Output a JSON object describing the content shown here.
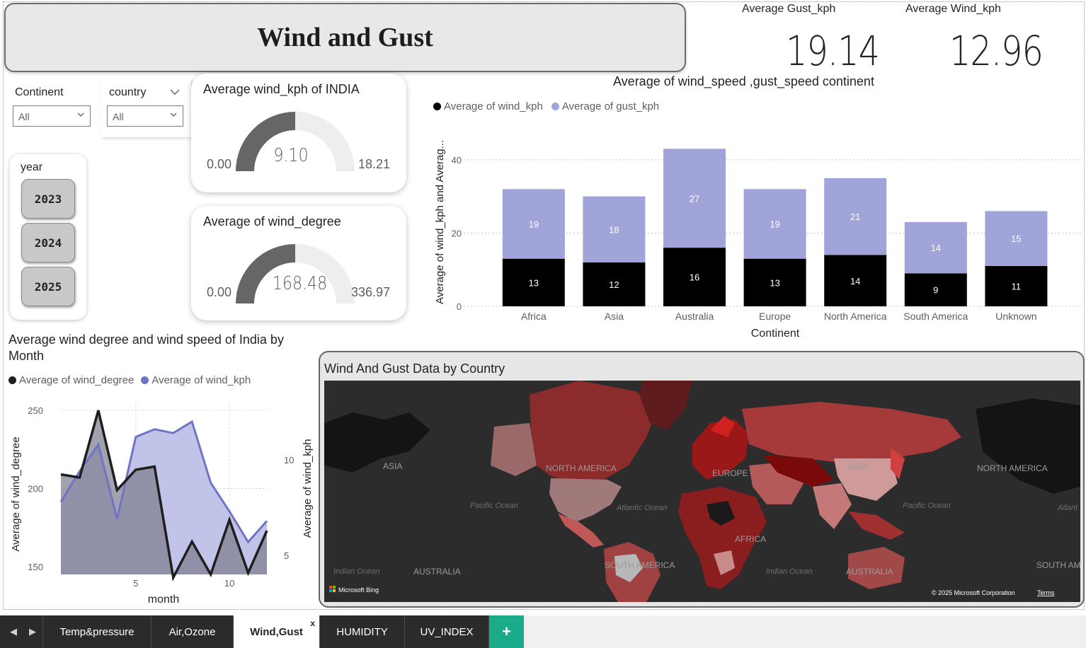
{
  "report": {
    "title": "Wind and Gust"
  },
  "kpis": [
    {
      "label": "Average Gust_kph",
      "value": "19.14"
    },
    {
      "label": "Average Wind_kph",
      "value": "12.96"
    }
  ],
  "slicers": {
    "continent": {
      "label": "Continent",
      "value": "All"
    },
    "country": {
      "label": "country",
      "value": "All"
    },
    "year": {
      "label": "year",
      "options": [
        "2023",
        "2024",
        "2025"
      ]
    }
  },
  "gauges": [
    {
      "title": "Average wind_kph of INDIA",
      "min": "0.00",
      "max": "18.21",
      "value": "9.10",
      "fraction": 0.5
    },
    {
      "title": "Average of wind_degree",
      "min": "0.00",
      "max": "336.97",
      "value": "168.48",
      "fraction": 0.5
    }
  ],
  "colors": {
    "black_series": "#000000",
    "lavender_series": "#a0a4d8",
    "line_purple": "#6f75c4",
    "gauge_fill": "#666666",
    "gauge_track": "#eeeeee",
    "active_tab": "#ffffff",
    "add_tab": "#1aab8a"
  },
  "chart_data": [
    {
      "type": "bar",
      "stacked": true,
      "title": "Average of wind_speed ,gust_speed continent",
      "xlabel": "Continent",
      "ylabel": "Average of wind_kph and Averag...",
      "categories": [
        "Africa",
        "Asia",
        "Australia",
        "Europe",
        "North America",
        "South America",
        "Unknown"
      ],
      "series": [
        {
          "name": "Average of wind_kph",
          "color": "#000000",
          "values": [
            13,
            12,
            16,
            13,
            14,
            9,
            11
          ]
        },
        {
          "name": "Average of gust_kph",
          "color": "#a0a4d8",
          "values": [
            19,
            18,
            27,
            19,
            21,
            14,
            15
          ]
        }
      ],
      "ylim": [
        0,
        45
      ],
      "yticks": [
        0,
        20,
        40
      ],
      "legend": "top-left",
      "grid": true
    },
    {
      "type": "area",
      "title": "Average wind degree and wind speed of India by Month",
      "xlabel": "month",
      "ylabel": "Average of wind_degree",
      "ylabel2": "Average of wind_kph",
      "x": [
        1,
        2,
        3,
        4,
        5,
        6,
        7,
        8,
        9,
        10,
        11,
        12
      ],
      "xticks": [
        5,
        10
      ],
      "series": [
        {
          "name": "Average of wind_degree",
          "color": "#1f1f1f",
          "axis": "left",
          "values": [
            209,
            207,
            250,
            199,
            212,
            214,
            143,
            166,
            145,
            180,
            146,
            173
          ]
        },
        {
          "name": "Average of wind_kph",
          "color": "#6f75c4",
          "axis": "right",
          "values": [
            7.8,
            9.4,
            10.8,
            6.9,
            11.2,
            11.6,
            11.4,
            12.0,
            8.8,
            7.3,
            5.7,
            6.8
          ]
        }
      ],
      "ylim": [
        145,
        255
      ],
      "yticks": [
        150,
        200,
        250
      ],
      "ylim2": [
        4,
        13
      ],
      "yticks2": [
        5,
        10
      ],
      "legend": "top-left",
      "grid": true
    }
  ],
  "map": {
    "title": "Wind And Gust Data by Country",
    "labels": [
      "ASIA",
      "NORTH AMERICA",
      "EUROPE",
      "ASIA",
      "NORTH AMERICA",
      "AFRICA",
      "SOUTH AMERICA",
      "AUSTRALIA",
      "AUSTRALIA",
      "SOUTH AM"
    ],
    "oceans": [
      "Pacific Ocean",
      "Atlantic Ocean",
      "Pacific Ocean",
      "Atlant",
      "Indian Ocean",
      "Indian Ocean"
    ],
    "attribution": "Microsoft Bing",
    "copyright": "© 2025 Microsoft Corporation",
    "terms": "Terms"
  },
  "tabs": {
    "items": [
      "Temp&pressure",
      "Air,Ozone",
      "Wind,Gust",
      "HUMIDITY",
      "UV_INDEX"
    ],
    "active": "Wind,Gust",
    "close_label": "x",
    "add_label": "+"
  }
}
